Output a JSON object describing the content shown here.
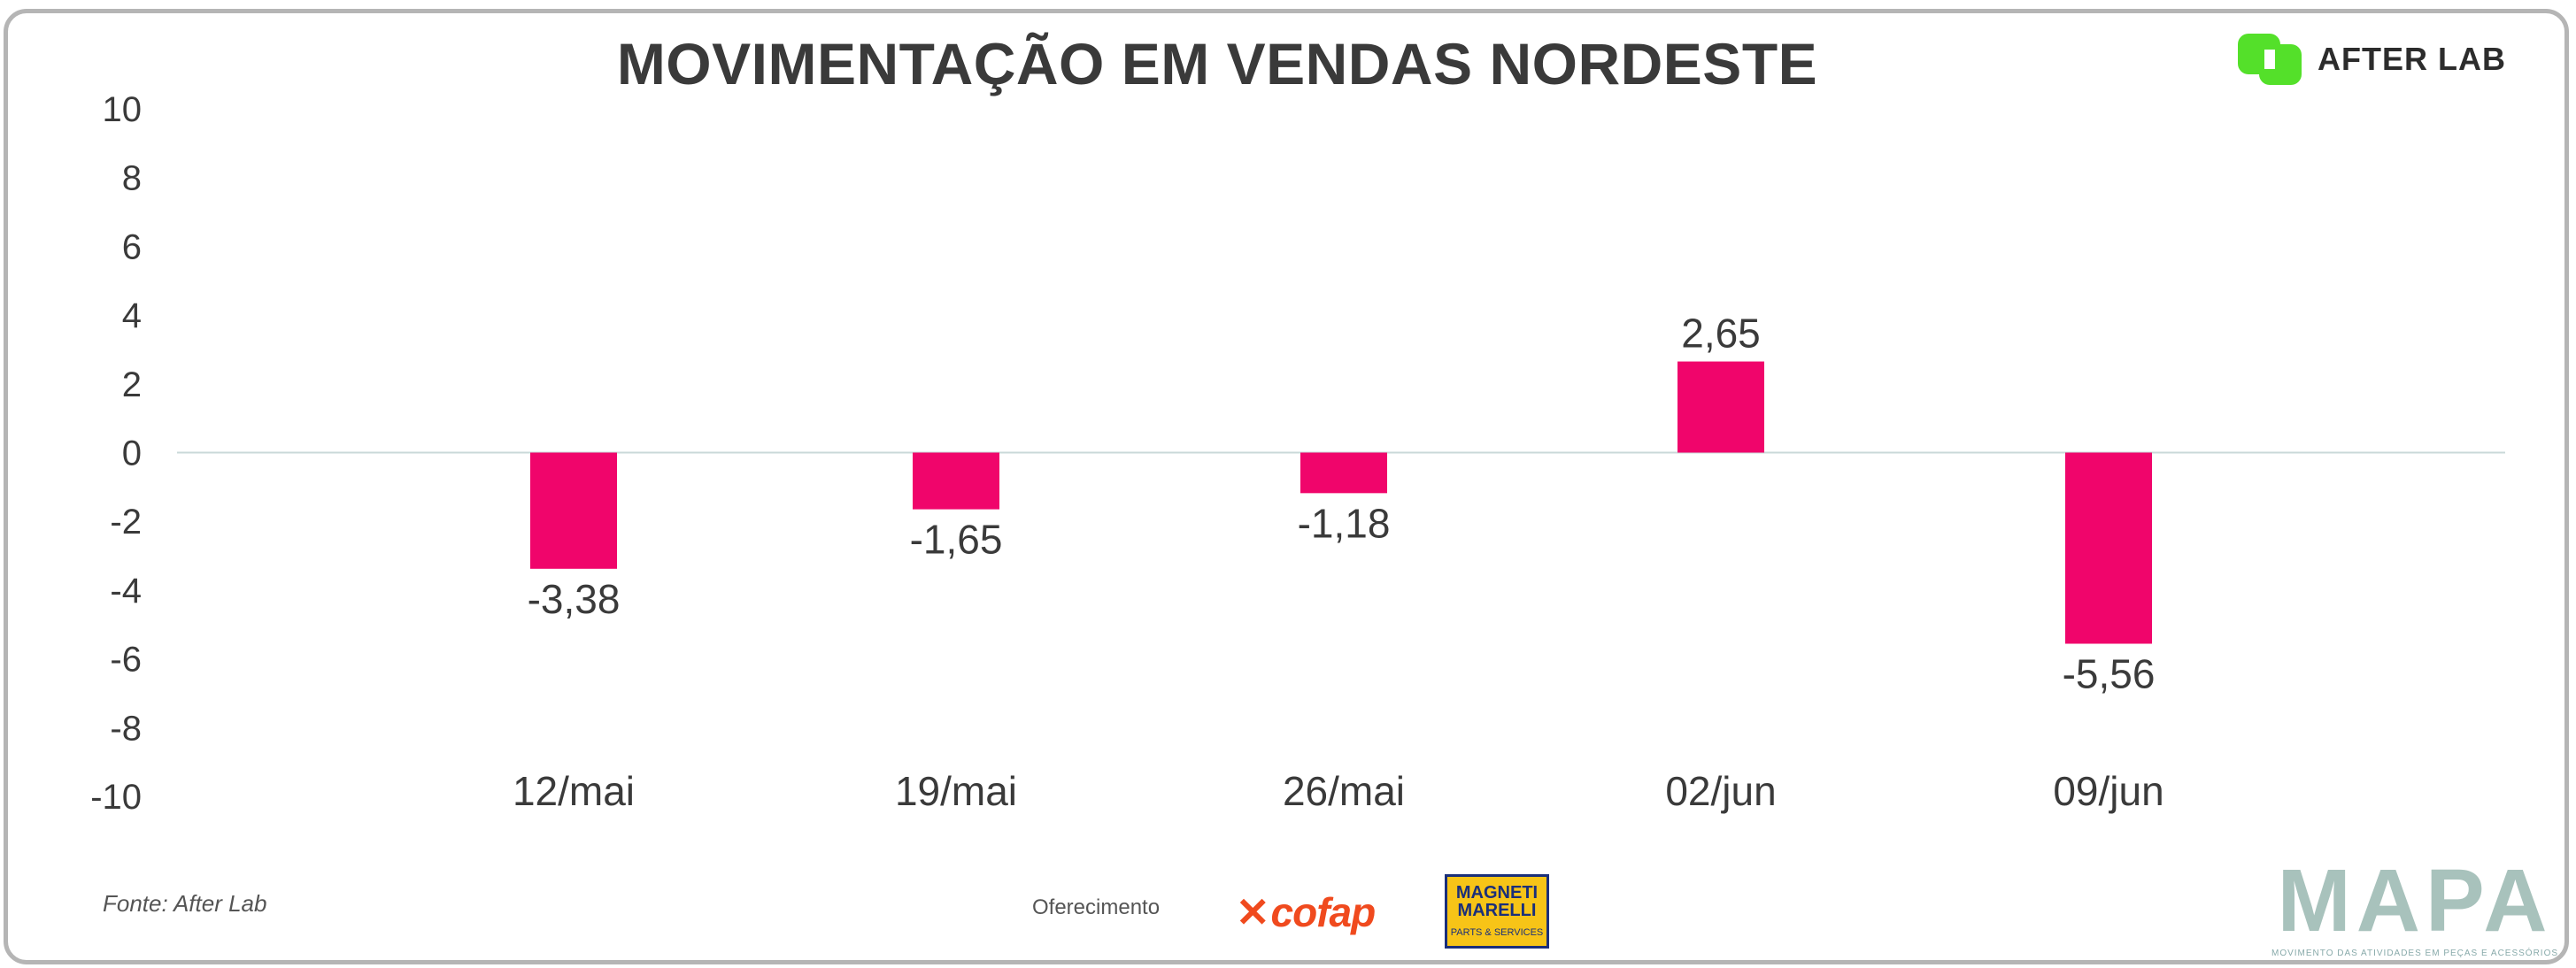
{
  "header": {
    "title": "MOVIMENTAÇÃO EM VENDAS NORDESTE",
    "brand": "AFTER LAB"
  },
  "footer": {
    "source": "Fonte: After Lab",
    "sponsor_label": "Oferecimento",
    "sponsor_1": "cofap",
    "sponsor_2_line1": "MAGNETI",
    "sponsor_2_line2": "MARELLI",
    "sponsor_2_line3": "PARTS & SERVICES",
    "mapa_title": "MAPA",
    "mapa_subtitle": "MOVIMENTO DAS ATIVIDADES EM PEÇAS E ACESSÓRIOS"
  },
  "colors": {
    "bar": "#f0056b",
    "axis_text": "#3a3a3a",
    "zero_line": "#c9d9d9",
    "brand_green": "#54e02a"
  },
  "chart_data": {
    "type": "bar",
    "title": "MOVIMENTAÇÃO EM VENDAS NORDESTE",
    "xlabel": "",
    "ylabel": "",
    "categories": [
      "12/mai",
      "19/mai",
      "26/mai",
      "02/jun",
      "09/jun"
    ],
    "values": [
      -3.38,
      -1.65,
      -1.18,
      2.65,
      -5.56
    ],
    "data_labels": [
      "-3,38",
      "-1,65",
      "-1,18",
      "2,65",
      "-5,56"
    ],
    "ylim": [
      -10,
      10
    ],
    "yticks": [
      10,
      8,
      6,
      4,
      2,
      0,
      -2,
      -4,
      -6,
      -8,
      -10
    ],
    "ytick_labels": [
      "10",
      "8",
      "6",
      "4",
      "2",
      "0",
      "-2",
      "-4",
      "-6",
      "-8",
      "-10"
    ],
    "grid": false,
    "legend": "none"
  }
}
